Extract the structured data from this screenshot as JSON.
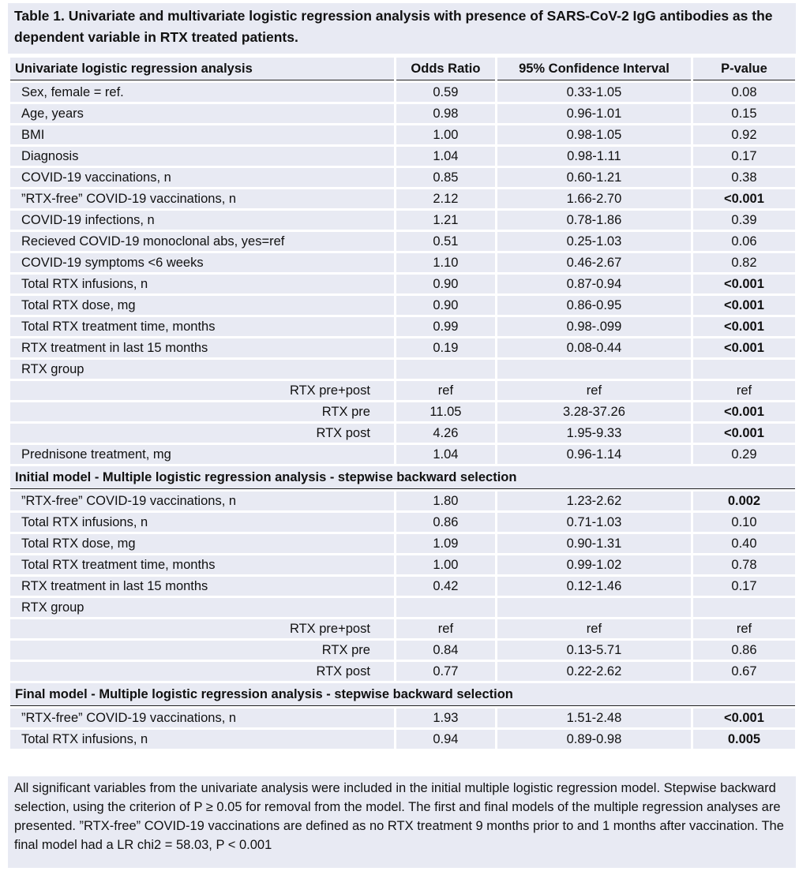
{
  "title": "Table 1. Univariate and multivariate logistic regression analysis with presence of SARS-CoV-2 IgG antibodies as the dependent variable in RTX treated patients.",
  "columns": [
    "Univariate logistic regression analysis",
    "Odds Ratio",
    "95% Confidence Interval",
    "P-value"
  ],
  "sections": [
    {
      "heading": null,
      "rows": [
        {
          "label": "Sex, female = ref.",
          "or": "0.59",
          "ci": "0.33-1.05",
          "p": "0.08",
          "sig": false
        },
        {
          "label": "Age, years",
          "or": "0.98",
          "ci": "0.96-1.01",
          "p": "0.15",
          "sig": false
        },
        {
          "label": "BMI",
          "or": "1.00",
          "ci": "0.98-1.05",
          "p": "0.92",
          "sig": false
        },
        {
          "label": "Diagnosis",
          "or": "1.04",
          "ci": "0.98-1.11",
          "p": "0.17",
          "sig": false
        },
        {
          "label": "COVID-19 vaccinations, n",
          "or": "0.85",
          "ci": "0.60-1.21",
          "p": "0.38",
          "sig": false
        },
        {
          "label": "”RTX-free” COVID-19 vaccinations, n",
          "or": "2.12",
          "ci": "1.66-2.70",
          "p": "<0.001",
          "sig": true
        },
        {
          "label": "COVID-19 infections, n",
          "or": "1.21",
          "ci": "0.78-1.86",
          "p": "0.39",
          "sig": false
        },
        {
          "label": "Recieved COVID-19 monoclonal abs, yes=ref",
          "or": "0.51",
          "ci": "0.25-1.03",
          "p": "0.06",
          "sig": false
        },
        {
          "label": "COVID-19 symptoms <6 weeks",
          "or": "1.10",
          "ci": "0.46-2.67",
          "p": "0.82",
          "sig": false
        },
        {
          "label": "Total RTX infusions, n",
          "or": "0.90",
          "ci": "0.87-0.94",
          "p": "<0.001",
          "sig": true
        },
        {
          "label": "Total RTX dose, mg",
          "or": "0.90",
          "ci": "0.86-0.95",
          "p": "<0.001",
          "sig": true
        },
        {
          "label": "Total RTX treatment time, months",
          "or": "0.99",
          "ci": "0.98-.099",
          "p": "<0.001",
          "sig": true
        },
        {
          "label": "RTX treatment in last 15 months",
          "or": "0.19",
          "ci": "0.08-0.44",
          "p": "<0.001",
          "sig": true
        },
        {
          "label": "RTX group",
          "or": "",
          "ci": "",
          "p": "",
          "sig": false
        },
        {
          "label": "RTX pre+post",
          "or": "ref",
          "ci": "ref",
          "p": "ref",
          "sig": false,
          "sub": true
        },
        {
          "label": "RTX pre",
          "or": "11.05",
          "ci": "3.28-37.26",
          "p": "<0.001",
          "sig": true,
          "sub": true
        },
        {
          "label": "RTX post",
          "or": "4.26",
          "ci": "1.95-9.33",
          "p": "<0.001",
          "sig": true,
          "sub": true
        },
        {
          "label": "Prednisone treatment, mg",
          "or": "1.04",
          "ci": "0.96-1.14",
          "p": "0.29",
          "sig": false
        }
      ]
    },
    {
      "heading": "Initial model - Multiple logistic regression analysis - stepwise backward selection",
      "rows": [
        {
          "label": "”RTX-free” COVID-19 vaccinations, n",
          "or": "1.80",
          "ci": "1.23-2.62",
          "p": "0.002",
          "sig": true
        },
        {
          "label": "Total RTX infusions, n",
          "or": "0.86",
          "ci": "0.71-1.03",
          "p": "0.10",
          "sig": false
        },
        {
          "label": "Total RTX dose, mg",
          "or": "1.09",
          "ci": "0.90-1.31",
          "p": "0.40",
          "sig": false
        },
        {
          "label": "Total RTX treatment time, months",
          "or": "1.00",
          "ci": "0.99-1.02",
          "p": "0.78",
          "sig": false
        },
        {
          "label": "RTX treatment in last 15 months",
          "or": "0.42",
          "ci": "0.12-1.46",
          "p": "0.17",
          "sig": false
        },
        {
          "label": "RTX group",
          "or": "",
          "ci": "",
          "p": "",
          "sig": false
        },
        {
          "label": "RTX pre+post",
          "or": "ref",
          "ci": "ref",
          "p": "ref",
          "sig": false,
          "sub": true
        },
        {
          "label": "RTX pre",
          "or": "0.84",
          "ci": "0.13-5.71",
          "p": "0.86",
          "sig": false,
          "sub": true
        },
        {
          "label": "RTX post",
          "or": "0.77",
          "ci": "0.22-2.62",
          "p": "0.67",
          "sig": false,
          "sub": true
        }
      ]
    },
    {
      "heading": "Final model - Multiple logistic regression analysis - stepwise backward selection",
      "rows": [
        {
          "label": "”RTX-free” COVID-19 vaccinations, n",
          "or": "1.93",
          "ci": "1.51-2.48",
          "p": "<0.001",
          "sig": true
        },
        {
          "label": "Total RTX infusions, n",
          "or": "0.94",
          "ci": "0.89-0.98",
          "p": "0.005",
          "sig": true
        }
      ]
    }
  ],
  "footnote": "All significant variables from the univariate analysis were included in the initial multiple logistic regression model. Stepwise backward selection, using the criterion of P ≥ 0.05 for removal from the model. The first and final models of the multiple regression analyses are presented. ”RTX-free” COVID-19 vaccinations are defined as no RTX treatment 9 months prior to and 1 months after vaccination. The final model had a LR chi2 = 58.03, P < 0.001"
}
